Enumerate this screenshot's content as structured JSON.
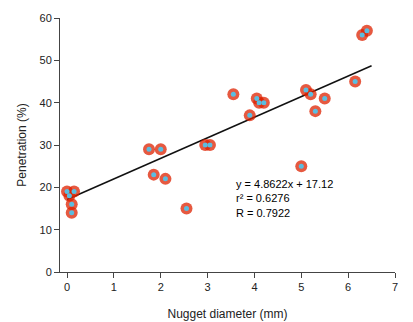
{
  "chart_data": {
    "type": "scatter",
    "xlabel": "Nugget diameter (mm)",
    "ylabel": "Penetration (%)",
    "annotation": "y = 4.8622x + 17.12\nr² = 0.6276\nR = 0.7922",
    "series": [
      {
        "type": "scatter",
        "color": "#dd2200",
        "x": [
          0.0,
          0.05,
          0.1,
          0.1,
          0.15,
          1.75,
          1.85,
          2.0,
          2.1,
          2.55,
          2.95,
          3.05,
          3.55,
          3.9,
          4.05,
          4.1,
          4.2,
          5.0,
          5.1,
          5.2,
          5.3,
          5.5,
          6.15,
          6.3,
          6.4
        ],
        "values": [
          19,
          18,
          14,
          16,
          19,
          29,
          23,
          29,
          22,
          15,
          30,
          30,
          42,
          37,
          41,
          40,
          40,
          25,
          43,
          42,
          38,
          41,
          45,
          56,
          57
        ]
      },
      {
        "type": "scatter",
        "color": "#5bbde0",
        "x": [
          0.0,
          0.05,
          0.1,
          0.1,
          0.15,
          1.75,
          1.85,
          2.0,
          2.1,
          2.55,
          2.95,
          3.05,
          3.55,
          3.9,
          4.05,
          4.1,
          4.2,
          5.0,
          5.1,
          5.2,
          5.3,
          5.5,
          6.15,
          6.3,
          6.4
        ],
        "values": [
          19,
          18,
          14,
          16,
          19,
          29,
          23,
          29,
          22,
          15,
          30,
          30,
          42,
          37,
          41,
          40,
          40,
          25,
          43,
          42,
          38,
          41,
          45,
          56,
          57
        ]
      },
      {
        "type": "line",
        "color": "#111111",
        "x": [
          0.0,
          6.5
        ],
        "values": [
          17.12,
          48.7243
        ]
      }
    ],
    "xlim": [
      -0.15,
      7.0
    ],
    "ylim": [
      0,
      60
    ],
    "xticks": [
      0,
      1,
      2,
      3,
      4,
      5,
      6,
      7
    ],
    "yticks": [
      0,
      10,
      20,
      30,
      40,
      50,
      60
    ],
    "grid": false
  }
}
